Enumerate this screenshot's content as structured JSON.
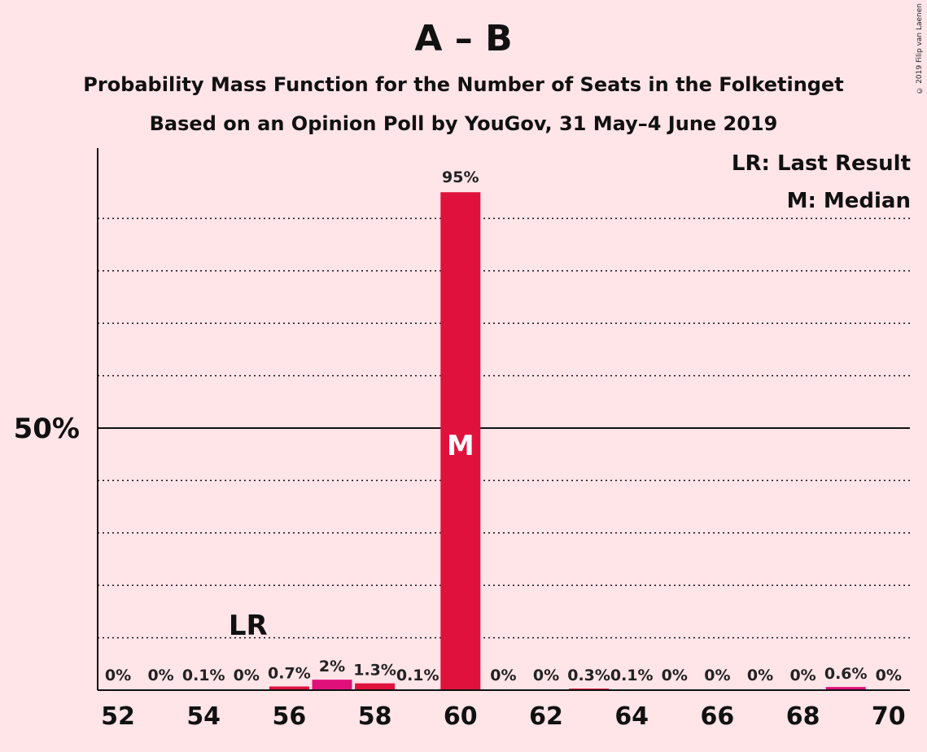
{
  "title": "A – B",
  "subtitle1": "Probability Mass Function for the Number of Seats in the Folketinget",
  "subtitle2": "Based on an Opinion Poll by YouGov, 31 May–4 June 2019",
  "copyright": "© 2019 Filip van Laenen",
  "legend": {
    "lr": "LR: Last Result",
    "m": "M: Median"
  },
  "colors": {
    "bar": "#E0123D",
    "bar_highlight": "#E0107A",
    "background": "#FFE4E8"
  },
  "chart_data": {
    "type": "bar",
    "title": "A – B",
    "categories": [
      52,
      53,
      54,
      55,
      56,
      57,
      58,
      59,
      60,
      61,
      62,
      63,
      64,
      65,
      66,
      67,
      68,
      69,
      70
    ],
    "values": [
      0,
      0,
      0.1,
      0,
      0.7,
      2,
      1.3,
      0.1,
      95,
      0,
      0,
      0.3,
      0.1,
      0,
      0,
      0,
      0,
      0.6,
      0
    ],
    "labels": [
      "0%",
      "0%",
      "0.1%",
      "0%",
      "0.7%",
      "2%",
      "1.3%",
      "0.1%",
      "95%",
      "0%",
      "0%",
      "0.3%",
      "0.1%",
      "0%",
      "0%",
      "0%",
      "0%",
      "0.6%",
      "0%"
    ],
    "x_ticks": [
      "52",
      "54",
      "56",
      "58",
      "60",
      "62",
      "64",
      "66",
      "68",
      "70"
    ],
    "y_tick_label": "50%",
    "ylim": [
      0,
      100
    ],
    "grid": "dotted every 10%, solid at 50%",
    "last_result": 55,
    "last_result_label": "LR",
    "median": 60,
    "median_label": "M"
  }
}
